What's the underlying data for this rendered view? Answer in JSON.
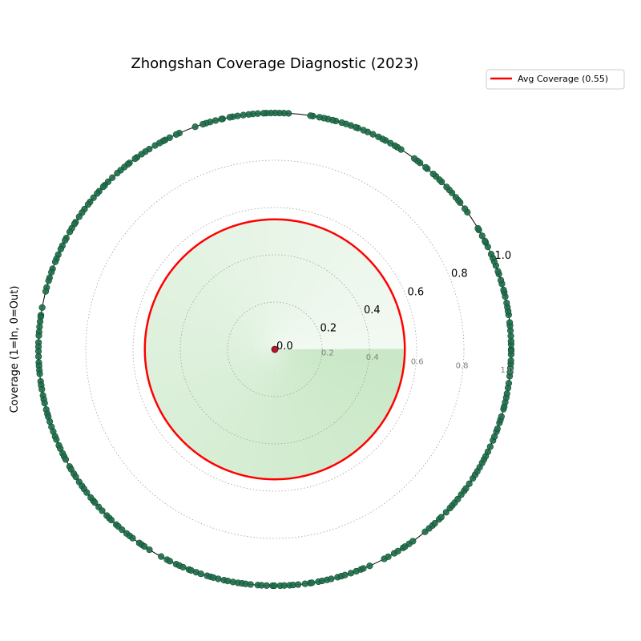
{
  "chart_data": {
    "type": "scatter",
    "projection": "polar",
    "title": "Zhongshan Coverage Diagnostic (2023)",
    "ylabel": "Coverage (1=In, 0=Out)",
    "rlim": [
      0,
      1.0
    ],
    "r_ticks": [
      "0.0",
      "0.2",
      "0.4",
      "0.6",
      "0.8",
      "1.0"
    ],
    "inner_ticks": [
      "0.2",
      "0.4",
      "0.6",
      "0.8",
      "1.0"
    ],
    "grid": "dotted",
    "legend_placement": "top-right",
    "average": {
      "label": "Avg Coverage (0.55)",
      "value": 0.55,
      "color": "#ff0000"
    },
    "colors": {
      "points": "#1f6e4a",
      "point_edge": "#0b4a2c",
      "fill_light": "#f2f9f2",
      "fill_dark": "#c9e8c6",
      "center_marker": "#b0182b"
    },
    "series": [
      {
        "values_r": 1.0,
        "gaps_deg": [
          [
            82,
            86
          ],
          [
            54,
            57
          ],
          [
            32,
            35
          ],
          [
            166,
            169
          ],
          [
            238,
            241
          ],
          [
            294,
            297
          ],
          [
            306,
            309
          ],
          [
            110,
            113
          ]
        ]
      },
      {
        "values_r": 0.0
      }
    ]
  }
}
